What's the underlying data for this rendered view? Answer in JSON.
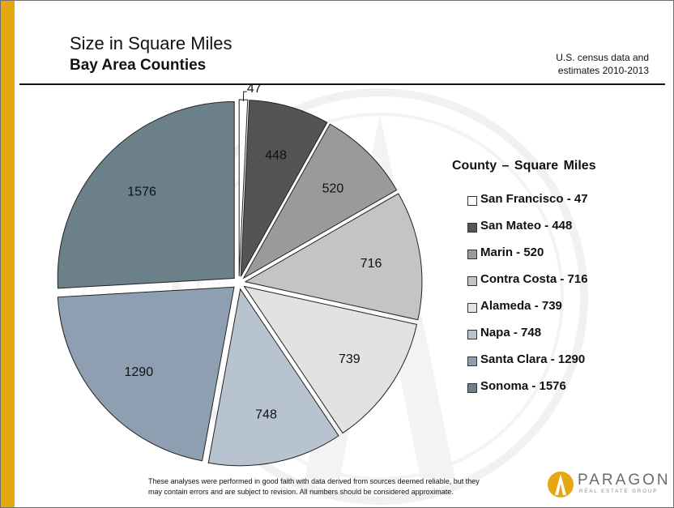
{
  "header": {
    "title": "Size in Square Miles",
    "subtitle": "Bay Area Counties",
    "source_line1": "U.S. census data and",
    "source_line2": "estimates 2010-2013"
  },
  "chart_data": {
    "type": "pie",
    "legend_title": "County – Square Miles",
    "legend_placement": "right",
    "slices": [
      {
        "label": "San Francisco",
        "value": 47,
        "legend": "San Francisco - 47",
        "color": "#ffffff"
      },
      {
        "label": "San Mateo",
        "value": 448,
        "legend": "San Mateo - 448",
        "color": "#545454"
      },
      {
        "label": "Marin",
        "value": 520,
        "legend": "Marin - 520",
        "color": "#9a9a9a"
      },
      {
        "label": "Contra Costa",
        "value": 716,
        "legend": "Contra Costa - 716",
        "color": "#c4c4c4"
      },
      {
        "label": "Alameda",
        "value": 739,
        "legend": "Alameda - 739",
        "color": "#e2e2e2"
      },
      {
        "label": "Napa",
        "value": 748,
        "legend": "Napa - 748",
        "color": "#b7c3ce"
      },
      {
        "label": "Santa Clara",
        "value": 1290,
        "legend": "Santa Clara - 1290",
        "color": "#8d9fb0"
      },
      {
        "label": "Sonoma",
        "value": 1576,
        "legend": "Sonoma - 1576",
        "color": "#6b8088"
      }
    ]
  },
  "footer": {
    "line1": "These analyses were performed in good faith with data derived from sources  deemed reliable, but they",
    "line2": "may contain errors  and are subject to revision.  All numbers should be considered approximate."
  },
  "logo": {
    "name": "PARAGON",
    "tagline": "REAL ESTATE GROUP",
    "color": "#e6a811"
  }
}
